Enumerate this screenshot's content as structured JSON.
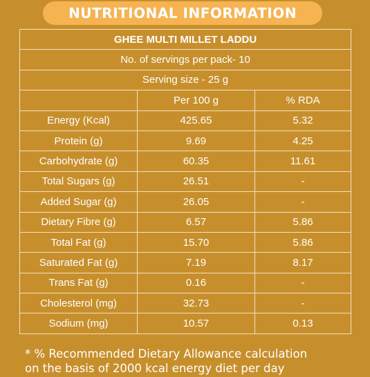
{
  "header": {
    "title": "NUTRITIONAL INFORMATION"
  },
  "product": {
    "name": "GHEE MULTI MILLET LADDU",
    "servings_per_pack": "No. of servings per pack- 10",
    "serving_size": "Serving size - 25 g"
  },
  "table": {
    "columns": [
      "",
      "Per 100 g",
      "% RDA"
    ],
    "rows": [
      {
        "nutrient": "Energy (Kcal)",
        "per100g": "425.65",
        "rda": "5.32"
      },
      {
        "nutrient": "Protein (g)",
        "per100g": "9.69",
        "rda": "4.25"
      },
      {
        "nutrient": "Carbohydrate (g)",
        "per100g": "60.35",
        "rda": "11.61"
      },
      {
        "nutrient": "Total Sugars (g)",
        "per100g": "26.51",
        "rda": "-"
      },
      {
        "nutrient": "Added Sugar (g)",
        "per100g": "26.05",
        "rda": "-"
      },
      {
        "nutrient": "Dietary Fibre (g)",
        "per100g": "6.57",
        "rda": "5.86"
      },
      {
        "nutrient": "Total Fat (g)",
        "per100g": "15.70",
        "rda": "5.86"
      },
      {
        "nutrient": "Saturated Fat (g)",
        "per100g": "7.19",
        "rda": "8.17"
      },
      {
        "nutrient": "Trans Fat (g)",
        "per100g": "0.16",
        "rda": "-"
      },
      {
        "nutrient": "Cholesterol (mg)",
        "per100g": "32.73",
        "rda": "-"
      },
      {
        "nutrient": "Sodium (mg)",
        "per100g": "10.57",
        "rda": "0.13"
      }
    ]
  },
  "footnote": {
    "line1": "* % Recommended Dietary Allowance calculation",
    "line2": "on the basis of 2000 kcal energy diet per day"
  },
  "colors": {
    "background": "#c78f2c",
    "banner": "#f6b352",
    "text": "#ffffff",
    "grid": "#f3e1c0"
  }
}
